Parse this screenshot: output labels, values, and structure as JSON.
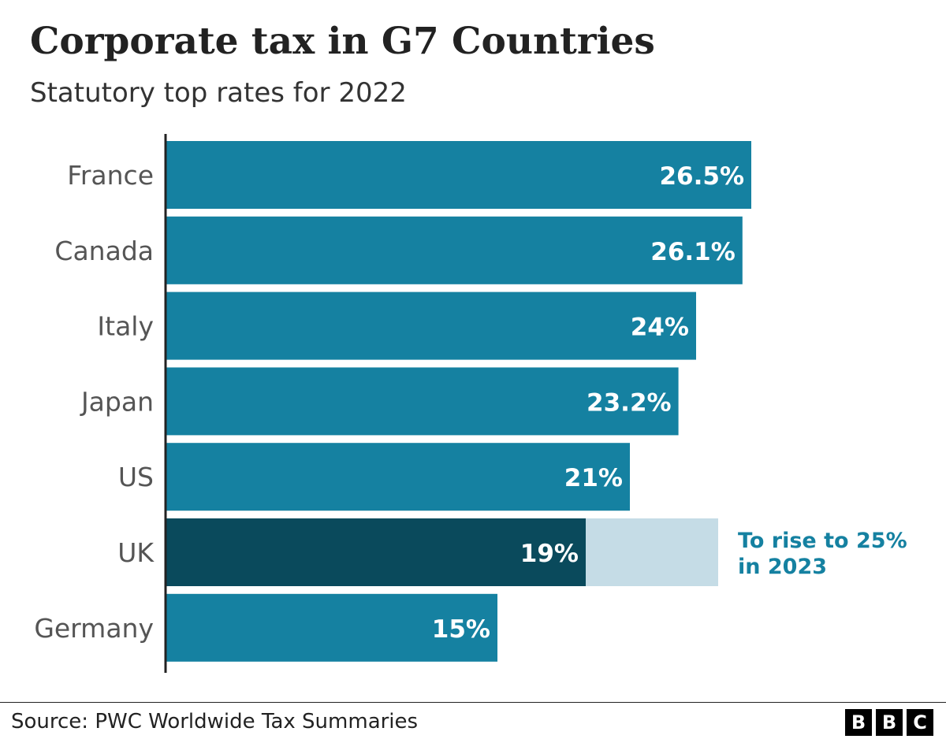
{
  "title": "Corporate tax in G7 Countries",
  "subtitle": "Statutory top rates for 2022",
  "source": "Source: PWC Worldwide Tax Summaries",
  "logo": [
    "B",
    "B",
    "C"
  ],
  "colors": {
    "bar": "#1581a1",
    "highlight": "#0a4a5c",
    "projection": "#c5dce6",
    "annotation": "#1581a1",
    "label": "#555555",
    "axis": "#222222"
  },
  "chart_data": {
    "type": "bar",
    "orientation": "horizontal",
    "title": "Corporate tax in G7 Countries",
    "subtitle": "Statutory top rates for 2022",
    "categories": [
      "France",
      "Canada",
      "Italy",
      "Japan",
      "US",
      "UK",
      "Germany"
    ],
    "values": [
      26.5,
      26.1,
      24,
      23.2,
      21,
      19,
      15
    ],
    "value_labels": [
      "26.5%",
      "26.1%",
      "24%",
      "23.2%",
      "21%",
      "19%",
      "15%"
    ],
    "highlight": "UK",
    "projection": {
      "category": "UK",
      "value": 25
    },
    "annotation": [
      "To rise to 25%",
      "in 2023"
    ],
    "xlim": [
      0,
      26.5
    ],
    "grid": false,
    "legend": "none"
  }
}
